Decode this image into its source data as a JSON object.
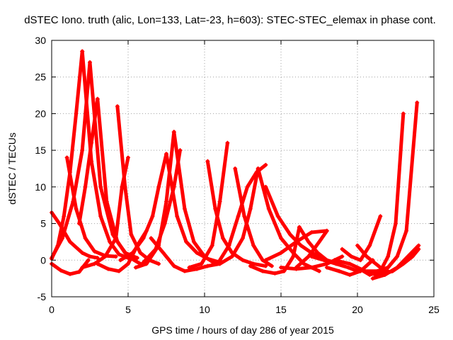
{
  "chart_data": {
    "type": "scatter",
    "title": "dSTEC Iono. truth (alic, Lon=133, Lat=-23, h=603): STEC-STEC_elemax in phase cont.",
    "xlabel": "GPS time / hours of day 286 of year 2015",
    "ylabel": "dSTEC  / TECUs",
    "xlim": [
      0,
      25
    ],
    "ylim": [
      -5,
      30
    ],
    "xticks": [
      0,
      5,
      10,
      15,
      20,
      25
    ],
    "yticks": [
      -5,
      0,
      5,
      10,
      15,
      20,
      25,
      30
    ],
    "grid": true,
    "legend": "none",
    "marker": "plus",
    "color": "#ff0000",
    "series": [
      {
        "x": [
          0.0,
          0.4,
          0.8,
          1.2,
          1.6,
          2.0
        ],
        "y": [
          0.2,
          2.0,
          6.0,
          12.0,
          20.0,
          28.5
        ]
      },
      {
        "x": [
          2.0,
          2.6,
          3.2,
          3.8,
          4.4,
          5.0
        ],
        "y": [
          28.5,
          13.5,
          6.0,
          2.5,
          0.8,
          0.3
        ]
      },
      {
        "x": [
          0.0,
          0.6,
          1.2,
          1.8,
          2.4
        ],
        "y": [
          -0.5,
          -1.4,
          -1.9,
          -1.6,
          0.0
        ]
      },
      {
        "x": [
          0.0,
          0.5,
          1.2,
          2.0,
          2.5,
          3.0
        ],
        "y": [
          6.5,
          5.0,
          2.5,
          1.0,
          0.5,
          0.3
        ]
      },
      {
        "x": [
          1.0,
          1.6,
          2.2,
          2.8,
          3.5,
          4.2
        ],
        "y": [
          14.0,
          7.0,
          3.0,
          1.2,
          0.6,
          0.5
        ]
      },
      {
        "x": [
          0.0,
          0.7,
          1.4,
          2.0,
          2.5
        ],
        "y": [
          0.3,
          3.0,
          8.0,
          15.0,
          27.0
        ]
      },
      {
        "x": [
          2.5,
          3.2,
          4.0,
          4.8,
          5.6
        ],
        "y": [
          27.0,
          10.0,
          3.5,
          1.0,
          0.3
        ]
      },
      {
        "x": [
          1.8,
          2.2,
          2.6,
          3.0
        ],
        "y": [
          5.0,
          10.0,
          16.0,
          22.0
        ]
      },
      {
        "x": [
          3.0,
          3.6,
          4.3,
          5.0,
          5.8
        ],
        "y": [
          22.0,
          8.0,
          2.5,
          0.5,
          -0.5
        ]
      },
      {
        "x": [
          2.0,
          2.8,
          3.5,
          4.2,
          4.6,
          5.0
        ],
        "y": [
          -1.0,
          -0.5,
          0.5,
          3.0,
          10.0,
          14.0
        ]
      },
      {
        "x": [
          4.3,
          4.8,
          5.2,
          5.8,
          6.4,
          7.0
        ],
        "y": [
          21.0,
          10.0,
          3.5,
          1.0,
          0.0,
          -0.5
        ]
      },
      {
        "x": [
          3.0,
          3.7,
          4.4,
          5.0,
          5.6,
          6.2
        ],
        "y": [
          -0.5,
          -1.2,
          -1.5,
          -0.5,
          2.0,
          4.0
        ]
      },
      {
        "x": [
          4.5,
          5.3,
          6.0,
          6.6,
          7.0,
          7.5
        ],
        "y": [
          0.0,
          1.0,
          3.0,
          6.0,
          10.0,
          14.5
        ]
      },
      {
        "x": [
          7.5,
          8.2,
          8.8,
          9.5,
          10.2,
          11.0
        ],
        "y": [
          14.5,
          6.0,
          2.5,
          1.0,
          0.2,
          -0.3
        ]
      },
      {
        "x": [
          5.5,
          6.2,
          7.0,
          7.5,
          8.0
        ],
        "y": [
          -1.0,
          -0.5,
          2.0,
          8.0,
          17.5
        ]
      },
      {
        "x": [
          8.0,
          8.7,
          9.3,
          10.0,
          10.7
        ],
        "y": [
          17.5,
          7.0,
          2.5,
          0.5,
          -0.5
        ]
      },
      {
        "x": [
          6.0,
          6.8,
          7.4,
          8.0,
          8.4
        ],
        "y": [
          -0.3,
          1.5,
          5.0,
          10.0,
          15.0
        ]
      },
      {
        "x": [
          6.5,
          7.3,
          8.0,
          8.7,
          9.5,
          10.2,
          11.0
        ],
        "y": [
          3.0,
          1.0,
          -0.8,
          -1.5,
          -1.2,
          -0.8,
          -0.5
        ]
      },
      {
        "x": [
          9.0,
          9.8,
          10.5,
          11.0,
          11.5
        ],
        "y": [
          -1.0,
          -0.5,
          2.0,
          8.0,
          16.0
        ]
      },
      {
        "x": [
          10.2,
          10.7,
          11.2,
          11.8,
          12.5,
          13.2,
          14.0
        ],
        "y": [
          13.5,
          7.0,
          3.0,
          1.0,
          0.0,
          -0.5,
          -0.8
        ]
      },
      {
        "x": [
          11.0,
          11.6,
          12.2,
          12.8,
          13.4,
          14.0
        ],
        "y": [
          0.0,
          2.0,
          6.0,
          10.0,
          12.0,
          13.0
        ]
      },
      {
        "x": [
          12.0,
          12.6,
          13.2,
          13.8,
          14.4
        ],
        "y": [
          12.5,
          6.0,
          2.0,
          0.0,
          -0.8
        ]
      },
      {
        "x": [
          11.0,
          11.8,
          12.5,
          13.0,
          13.5
        ],
        "y": [
          -0.5,
          0.5,
          3.0,
          7.0,
          12.5
        ]
      },
      {
        "x": [
          13.5,
          14.2,
          15.0,
          15.8,
          16.5,
          17.5
        ],
        "y": [
          12.5,
          7.0,
          3.0,
          1.0,
          -0.5,
          -1.5
        ]
      },
      {
        "x": [
          14.0,
          14.8,
          15.6,
          16.3,
          17.0,
          17.6
        ],
        "y": [
          10.0,
          6.0,
          3.5,
          2.0,
          1.0,
          0.5
        ]
      },
      {
        "x": [
          13.0,
          13.8,
          14.6,
          15.2,
          15.8,
          16.2
        ],
        "y": [
          -0.8,
          -1.5,
          -1.8,
          -1.5,
          0.5,
          4.5
        ]
      },
      {
        "x": [
          14.0,
          15.0,
          16.0,
          17.0,
          18.0
        ],
        "y": [
          0.0,
          1.0,
          2.5,
          3.8,
          4.0
        ]
      },
      {
        "x": [
          16.2,
          16.8,
          17.4,
          18.0,
          18.8
        ],
        "y": [
          4.5,
          2.5,
          1.0,
          0.0,
          -0.5
        ]
      },
      {
        "x": [
          15.0,
          16.0,
          17.0,
          18.0,
          19.0
        ],
        "y": [
          -1.0,
          -1.2,
          -1.0,
          -0.5,
          0.5
        ]
      },
      {
        "x": [
          16.0,
          16.8,
          17.5,
          18.0
        ],
        "y": [
          -1.0,
          0.5,
          2.5,
          4.0
        ]
      },
      {
        "x": [
          17.0,
          17.8,
          18.6,
          19.4,
          20.0
        ],
        "y": [
          0.5,
          0.0,
          -0.5,
          -1.0,
          -1.5
        ]
      },
      {
        "x": [
          18.0,
          18.8,
          19.5,
          20.2,
          21.0
        ],
        "y": [
          -1.0,
          -1.5,
          -2.0,
          -1.5,
          0.0
        ]
      },
      {
        "x": [
          19.0,
          19.6,
          20.2,
          20.8,
          21.5
        ],
        "y": [
          1.5,
          0.5,
          0.0,
          2.0,
          6.0
        ]
      },
      {
        "x": [
          18.5,
          19.5,
          20.0,
          20.5,
          21.2,
          22.0
        ],
        "y": [
          0.0,
          -0.5,
          -1.0,
          -1.5,
          -2.0,
          -1.5
        ]
      },
      {
        "x": [
          20.0,
          20.6,
          21.2,
          21.8
        ],
        "y": [
          2.0,
          0.5,
          -0.5,
          -1.5
        ]
      },
      {
        "x": [
          20.0,
          20.8,
          21.5,
          22.0,
          22.5,
          23.0
        ],
        "y": [
          -1.0,
          -2.0,
          -1.5,
          0.5,
          5.0,
          20.0
        ]
      },
      {
        "x": [
          20.5,
          21.3,
          22.0,
          22.6,
          23.2,
          23.9
        ],
        "y": [
          -1.5,
          -1.5,
          -1.0,
          0.5,
          4.0,
          21.5
        ]
      },
      {
        "x": [
          21.0,
          21.8,
          22.6,
          23.3,
          24.0
        ],
        "y": [
          -2.5,
          -2.0,
          -1.0,
          0.5,
          2.0
        ]
      },
      {
        "x": [
          21.5,
          22.3,
          23.0,
          23.6,
          24.0
        ],
        "y": [
          -2.0,
          -1.5,
          -0.5,
          0.5,
          1.5
        ]
      }
    ]
  }
}
